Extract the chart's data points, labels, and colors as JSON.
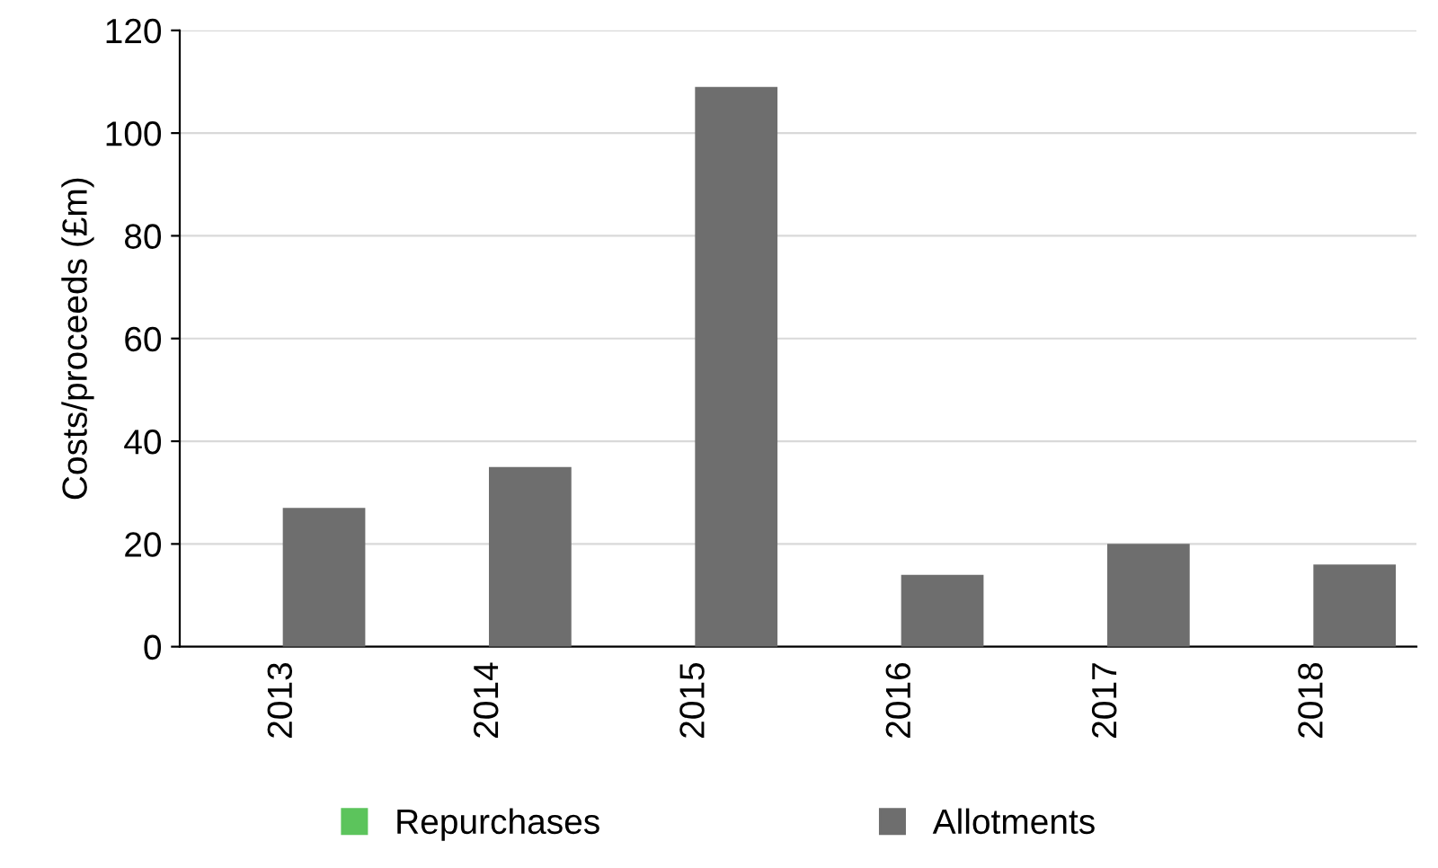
{
  "chart_data": {
    "type": "bar",
    "ylabel": "Costs/proceeds (£m)",
    "categories": [
      "2013",
      "2014",
      "2015",
      "2016",
      "2017",
      "2018"
    ],
    "series": [
      {
        "name": "Repurchases",
        "color": "#5cc45c",
        "values": [
          0,
          0,
          0,
          0,
          0,
          0
        ]
      },
      {
        "name": "Allotments",
        "color": "#6e6e6e",
        "values": [
          27,
          35,
          109,
          14,
          20,
          16
        ]
      }
    ],
    "ylim": [
      0,
      120
    ],
    "yticks": [
      0,
      20,
      40,
      60,
      80,
      100,
      120
    ],
    "grid": "y",
    "legend": "bottom"
  }
}
